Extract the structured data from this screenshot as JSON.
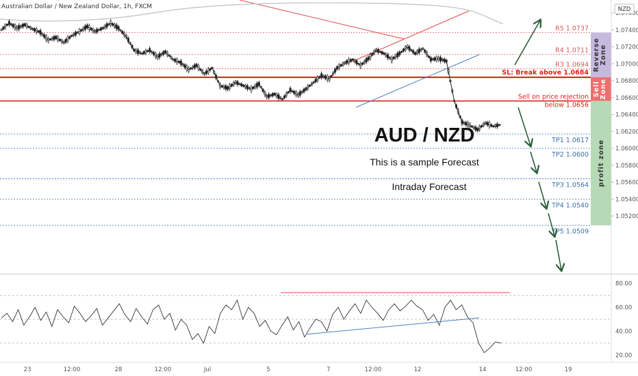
{
  "header": {
    "symbol": "Australian Dollar / New Zealand Dollar, 1h, FXCM",
    "currency_badge": "NZD"
  },
  "overlay_text": {
    "pair": "AUD / NZD",
    "subtitle": "This is a sample Forecast",
    "forecast_type": "Intraday Forecast"
  },
  "chart_data": [
    {
      "type": "line",
      "name": "price",
      "title": "",
      "ylim": [
        1.05,
        1.0746
      ],
      "y_ticks": [
        "1.07600",
        "1.07400",
        "1.07200",
        "1.07000",
        "1.06800",
        "1.06600",
        "1.06400",
        "1.06200",
        "1.06000",
        "1.05800",
        "1.05600",
        "1.05400",
        "1.05200"
      ],
      "x_ticks": [
        "23",
        "12:00",
        "28",
        "12:00",
        "Jul",
        "5",
        "7",
        "12:00",
        "12",
        "14",
        "12:00",
        "19"
      ],
      "levels": [
        {
          "label": "R5",
          "value": 1.0737,
          "text": "R5 1.0737",
          "color": "#e05a5a"
        },
        {
          "label": "R4",
          "value": 1.0711,
          "text": "R4 1.0711",
          "color": "#e05a5a"
        },
        {
          "label": "R3",
          "value": 1.0694,
          "text": "R3 1.0694",
          "color": "#e05a5a"
        },
        {
          "label": "SL",
          "value": 1.0684,
          "text": "SL: Break above 1.0684",
          "color": "#e52020"
        },
        {
          "label": "Sell",
          "value": 1.0656,
          "text_line1": "Sell on price rejection",
          "text_line2": "below 1.0656",
          "color": "#e52020"
        },
        {
          "label": "TP1",
          "value": 1.0617,
          "text": "TP1 1.0617",
          "color": "#3a6fb0"
        },
        {
          "label": "TP2",
          "value": 1.06,
          "text": "TP2 1.0600",
          "color": "#3a6fb0"
        },
        {
          "label": "TP3",
          "value": 1.0564,
          "text": "TP3 1.0564",
          "color": "#3a6fb0"
        },
        {
          "label": "TP4",
          "value": 1.054,
          "text": "TP4 1.0540",
          "color": "#3a6fb0"
        },
        {
          "label": "TP5",
          "value": 1.0509,
          "text": "TP5 1.0509",
          "color": "#3a6fb0"
        }
      ],
      "zones": [
        {
          "name": "Reverse Zone",
          "from": 1.0737,
          "to": 1.0684,
          "color": "#c6b9de"
        },
        {
          "name": "Sell Zone",
          "from": 1.0684,
          "to": 1.0656,
          "color": "#ef6e6e"
        },
        {
          "name": "profit zone",
          "from": 1.0656,
          "to": 1.0509,
          "color": "#b6d9b6"
        }
      ],
      "price_path": [
        [
          0,
          1.074
        ],
        [
          4,
          1.0748
        ],
        [
          8,
          1.0742
        ],
        [
          12,
          1.0746
        ],
        [
          16,
          1.0741
        ],
        [
          20,
          1.0737
        ],
        [
          24,
          1.0728
        ],
        [
          28,
          1.0731
        ],
        [
          32,
          1.0725
        ],
        [
          36,
          1.0733
        ],
        [
          40,
          1.0738
        ],
        [
          44,
          1.0744
        ],
        [
          48,
          1.0738
        ],
        [
          52,
          1.0742
        ],
        [
          56,
          1.0748
        ],
        [
          60,
          1.0742
        ],
        [
          64,
          1.0732
        ],
        [
          68,
          1.0716
        ],
        [
          72,
          1.0712
        ],
        [
          76,
          1.0716
        ],
        [
          80,
          1.0708
        ],
        [
          84,
          1.0714
        ],
        [
          88,
          1.0705
        ],
        [
          92,
          1.0701
        ],
        [
          96,
          1.0693
        ],
        [
          100,
          1.0698
        ],
        [
          104,
          1.0688
        ],
        [
          108,
          1.0695
        ],
        [
          112,
          1.0674
        ],
        [
          116,
          1.0671
        ],
        [
          120,
          1.0678
        ],
        [
          124,
          1.0674
        ],
        [
          128,
          1.067
        ],
        [
          132,
          1.0676
        ],
        [
          136,
          1.0661
        ],
        [
          140,
          1.0664
        ],
        [
          144,
          1.0658
        ],
        [
          148,
          1.0669
        ],
        [
          152,
          1.0663
        ],
        [
          156,
          1.067
        ],
        [
          160,
          1.0678
        ],
        [
          164,
          1.0686
        ],
        [
          168,
          1.0682
        ],
        [
          172,
          1.0695
        ],
        [
          176,
          1.0701
        ],
        [
          180,
          1.0705
        ],
        [
          184,
          1.0698
        ],
        [
          188,
          1.0706
        ],
        [
          192,
          1.0716
        ],
        [
          196,
          1.0712
        ],
        [
          200,
          1.0705
        ],
        [
          204,
          1.0712
        ],
        [
          208,
          1.072
        ],
        [
          212,
          1.0712
        ],
        [
          216,
          1.0718
        ],
        [
          220,
          1.0705
        ],
        [
          224,
          1.0706
        ],
        [
          228,
          1.0703
        ],
        [
          232,
          1.0656
        ],
        [
          236,
          1.0631
        ],
        [
          240,
          1.0627
        ],
        [
          244,
          1.0622
        ],
        [
          248,
          1.063
        ],
        [
          252,
          1.0626
        ],
        [
          256,
          1.0628
        ]
      ],
      "forecast_path": [
        {
          "from": "now",
          "to": "R5",
          "direction": "up"
        },
        {
          "from": "Sell",
          "to": "TP1",
          "direction": "down"
        },
        {
          "from": "TP1",
          "to": "TP2",
          "direction": "down"
        },
        {
          "from": "TP2",
          "to": "TP3",
          "direction": "down"
        },
        {
          "from": "TP3",
          "to": "TP4",
          "direction": "down"
        },
        {
          "from": "TP4",
          "to": "TP5",
          "direction": "down"
        }
      ]
    },
    {
      "type": "line",
      "name": "oscillator",
      "title": "",
      "ylim": [
        15,
        85
      ],
      "y_ticks": [
        "80.00",
        "60.00",
        "40.00",
        "20.00"
      ],
      "dashed_levels": [
        70,
        50,
        30
      ],
      "values": [
        51,
        55,
        48,
        58,
        45,
        52,
        60,
        49,
        56,
        44,
        58,
        52,
        47,
        61,
        55,
        48,
        53,
        59,
        45,
        51,
        57,
        63,
        54,
        48,
        59,
        52,
        46,
        58,
        62,
        50,
        55,
        41,
        50,
        45,
        33,
        38,
        30,
        44,
        38,
        55,
        62,
        58,
        66,
        50,
        60,
        55,
        44,
        49,
        40,
        37,
        45,
        52,
        41,
        48,
        35,
        43,
        50,
        48,
        40,
        54,
        60,
        50,
        57,
        63,
        55,
        66,
        60,
        55,
        49,
        58,
        63,
        57,
        61,
        66,
        61,
        58,
        49,
        54,
        45,
        60,
        66,
        58,
        62,
        52,
        47,
        30,
        22,
        26,
        31,
        30
      ]
    }
  ]
}
